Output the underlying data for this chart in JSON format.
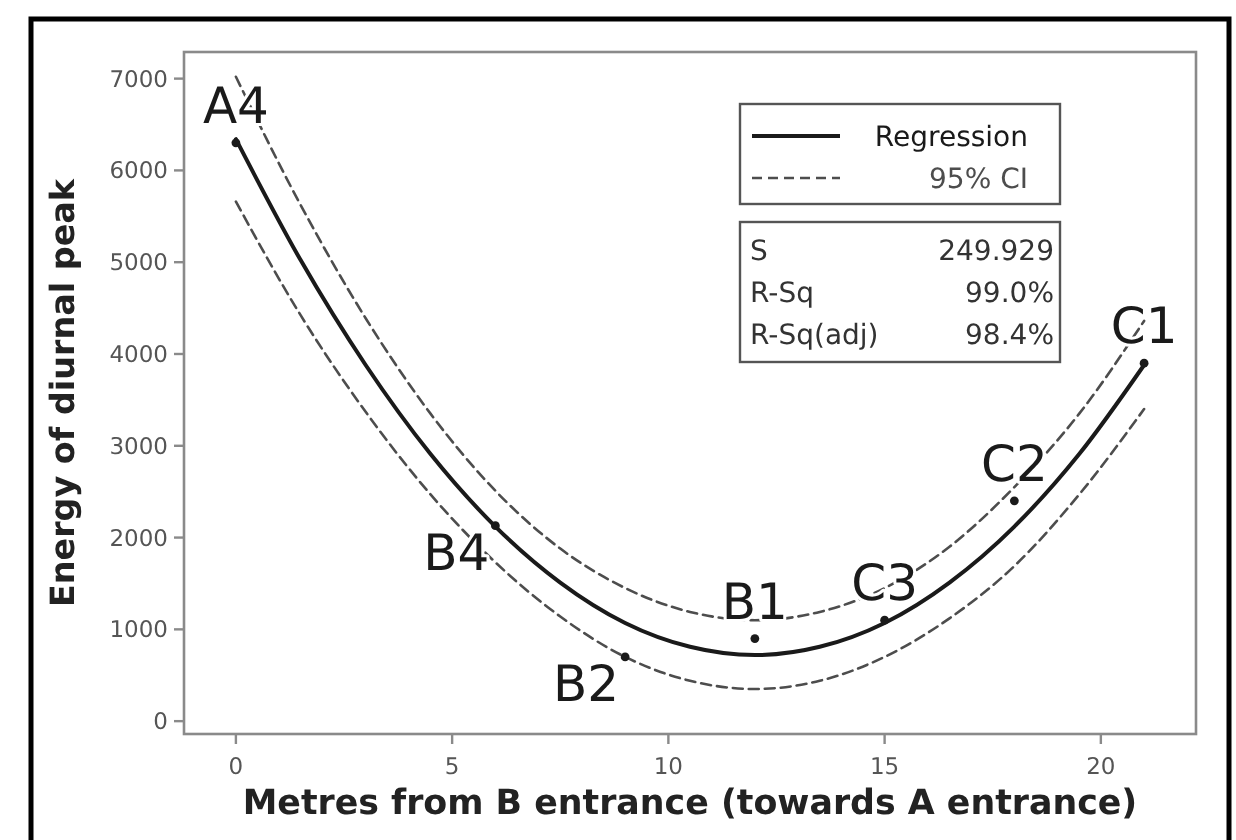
{
  "chart_data": {
    "type": "line",
    "xlabel": "Metres from B entrance (towards A entrance)",
    "ylabel": "Energy of diurnal peak",
    "xlim": [
      -1.2,
      22.2
    ],
    "ylim": [
      -140,
      7290
    ],
    "xticks": [
      0,
      5,
      10,
      15,
      20
    ],
    "yticks": [
      0,
      1000,
      2000,
      3000,
      4000,
      5000,
      6000,
      7000
    ],
    "series": [
      {
        "name": "Regression",
        "color": "#1a1a1a",
        "line_style": "solid",
        "x": [
          0,
          1.5,
          3,
          4.5,
          6,
          7.5,
          9,
          10.5,
          12,
          13.5,
          15,
          16.5,
          18,
          19.5,
          21
        ],
        "values": [
          6340,
          5020,
          3880,
          2910,
          2120,
          1510,
          1070,
          810,
          720,
          810,
          1070,
          1510,
          2120,
          2910,
          3880
        ]
      },
      {
        "name": "95% CI",
        "color": "#4d4d4d",
        "line_style": "dashed",
        "x": [
          0,
          1.5,
          3,
          4.5,
          6,
          7.5,
          9,
          10.5,
          12,
          13.5,
          15,
          16.5,
          18,
          19.5,
          21
        ],
        "values": [
          7020,
          5620,
          4390,
          3350,
          2510,
          1880,
          1450,
          1190,
          1100,
          1190,
          1450,
          1900,
          2550,
          3350,
          4360
        ]
      },
      {
        "color": "#4d4d4d",
        "line_style": "dashed",
        "x": [
          0,
          1.5,
          3,
          4.5,
          6,
          7.5,
          9,
          10.5,
          12,
          13.5,
          15,
          16.5,
          18,
          19.5,
          21
        ],
        "values": [
          5660,
          4420,
          3370,
          2470,
          1730,
          1140,
          700,
          440,
          350,
          440,
          700,
          1120,
          1690,
          2470,
          3400
        ]
      },
      {
        "type": "scatter",
        "color": "#1a1a1a",
        "marker": "circle",
        "x": [
          0,
          6,
          9,
          12,
          15,
          18,
          21
        ],
        "values": [
          6300,
          2130,
          700,
          900,
          1100,
          2400,
          3900
        ]
      }
    ],
    "legend": "top right",
    "annotations": [
      {
        "text": "A4",
        "x": 0,
        "y": 6300
      },
      {
        "text": "B4",
        "x": 6,
        "y": 2130
      },
      {
        "text": "B2",
        "x": 9,
        "y": 700
      },
      {
        "text": "B1",
        "x": 12,
        "y": 900
      },
      {
        "text": "C3",
        "x": 15,
        "y": 1100
      },
      {
        "text": "C2",
        "x": 18,
        "y": 2400
      },
      {
        "text": "C1",
        "x": 21,
        "y": 3900
      },
      "S",
      "249.929",
      "R-Sq",
      "99.0%",
      "R-Sq(adj)",
      "98.4%"
    ]
  }
}
